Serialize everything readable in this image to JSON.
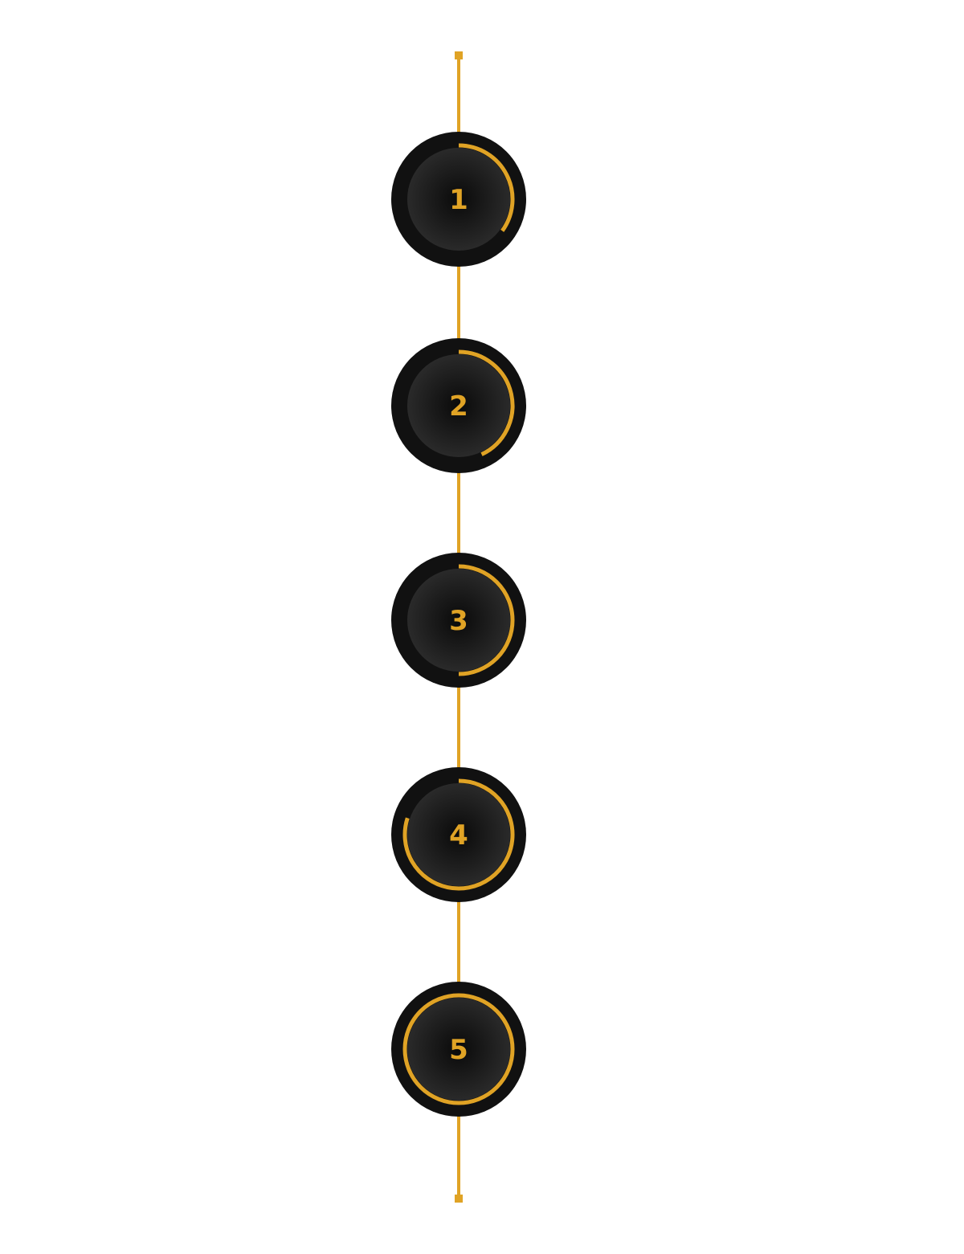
{
  "colors": {
    "accent": "#E0A325",
    "outer_ring": "#111111",
    "inner_center": "#0A0A0A",
    "inner_edge": "#2A2A2A",
    "background": "#FFFFFF"
  },
  "steps": [
    {
      "label": "1",
      "progress": 0.35
    },
    {
      "label": "2",
      "progress": 0.43
    },
    {
      "label": "3",
      "progress": 0.5
    },
    {
      "label": "4",
      "progress": 0.8
    },
    {
      "label": "5",
      "progress": 1.0
    }
  ]
}
